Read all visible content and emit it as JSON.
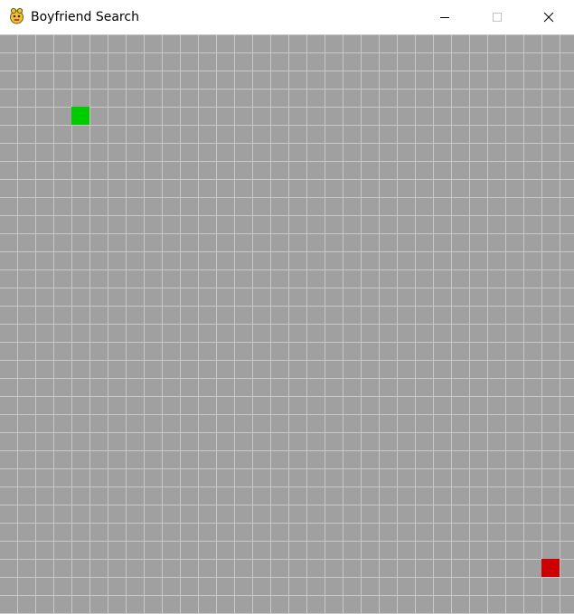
{
  "window": {
    "title": "Boyfriend Search",
    "app_icon": "pygame-snake-icon",
    "controls": {
      "minimize_icon": "minimize-icon",
      "maximize_icon": "maximize-icon",
      "close_icon": "close-icon"
    }
  },
  "grid": {
    "background_color": "#a0a0a0",
    "line_color": "#c8c8c8",
    "cells": {
      "start": {
        "row": 4,
        "col": 4,
        "color": "#00cc00"
      },
      "goal": {
        "row": 29,
        "col": 30,
        "color": "#cc0000"
      }
    }
  }
}
